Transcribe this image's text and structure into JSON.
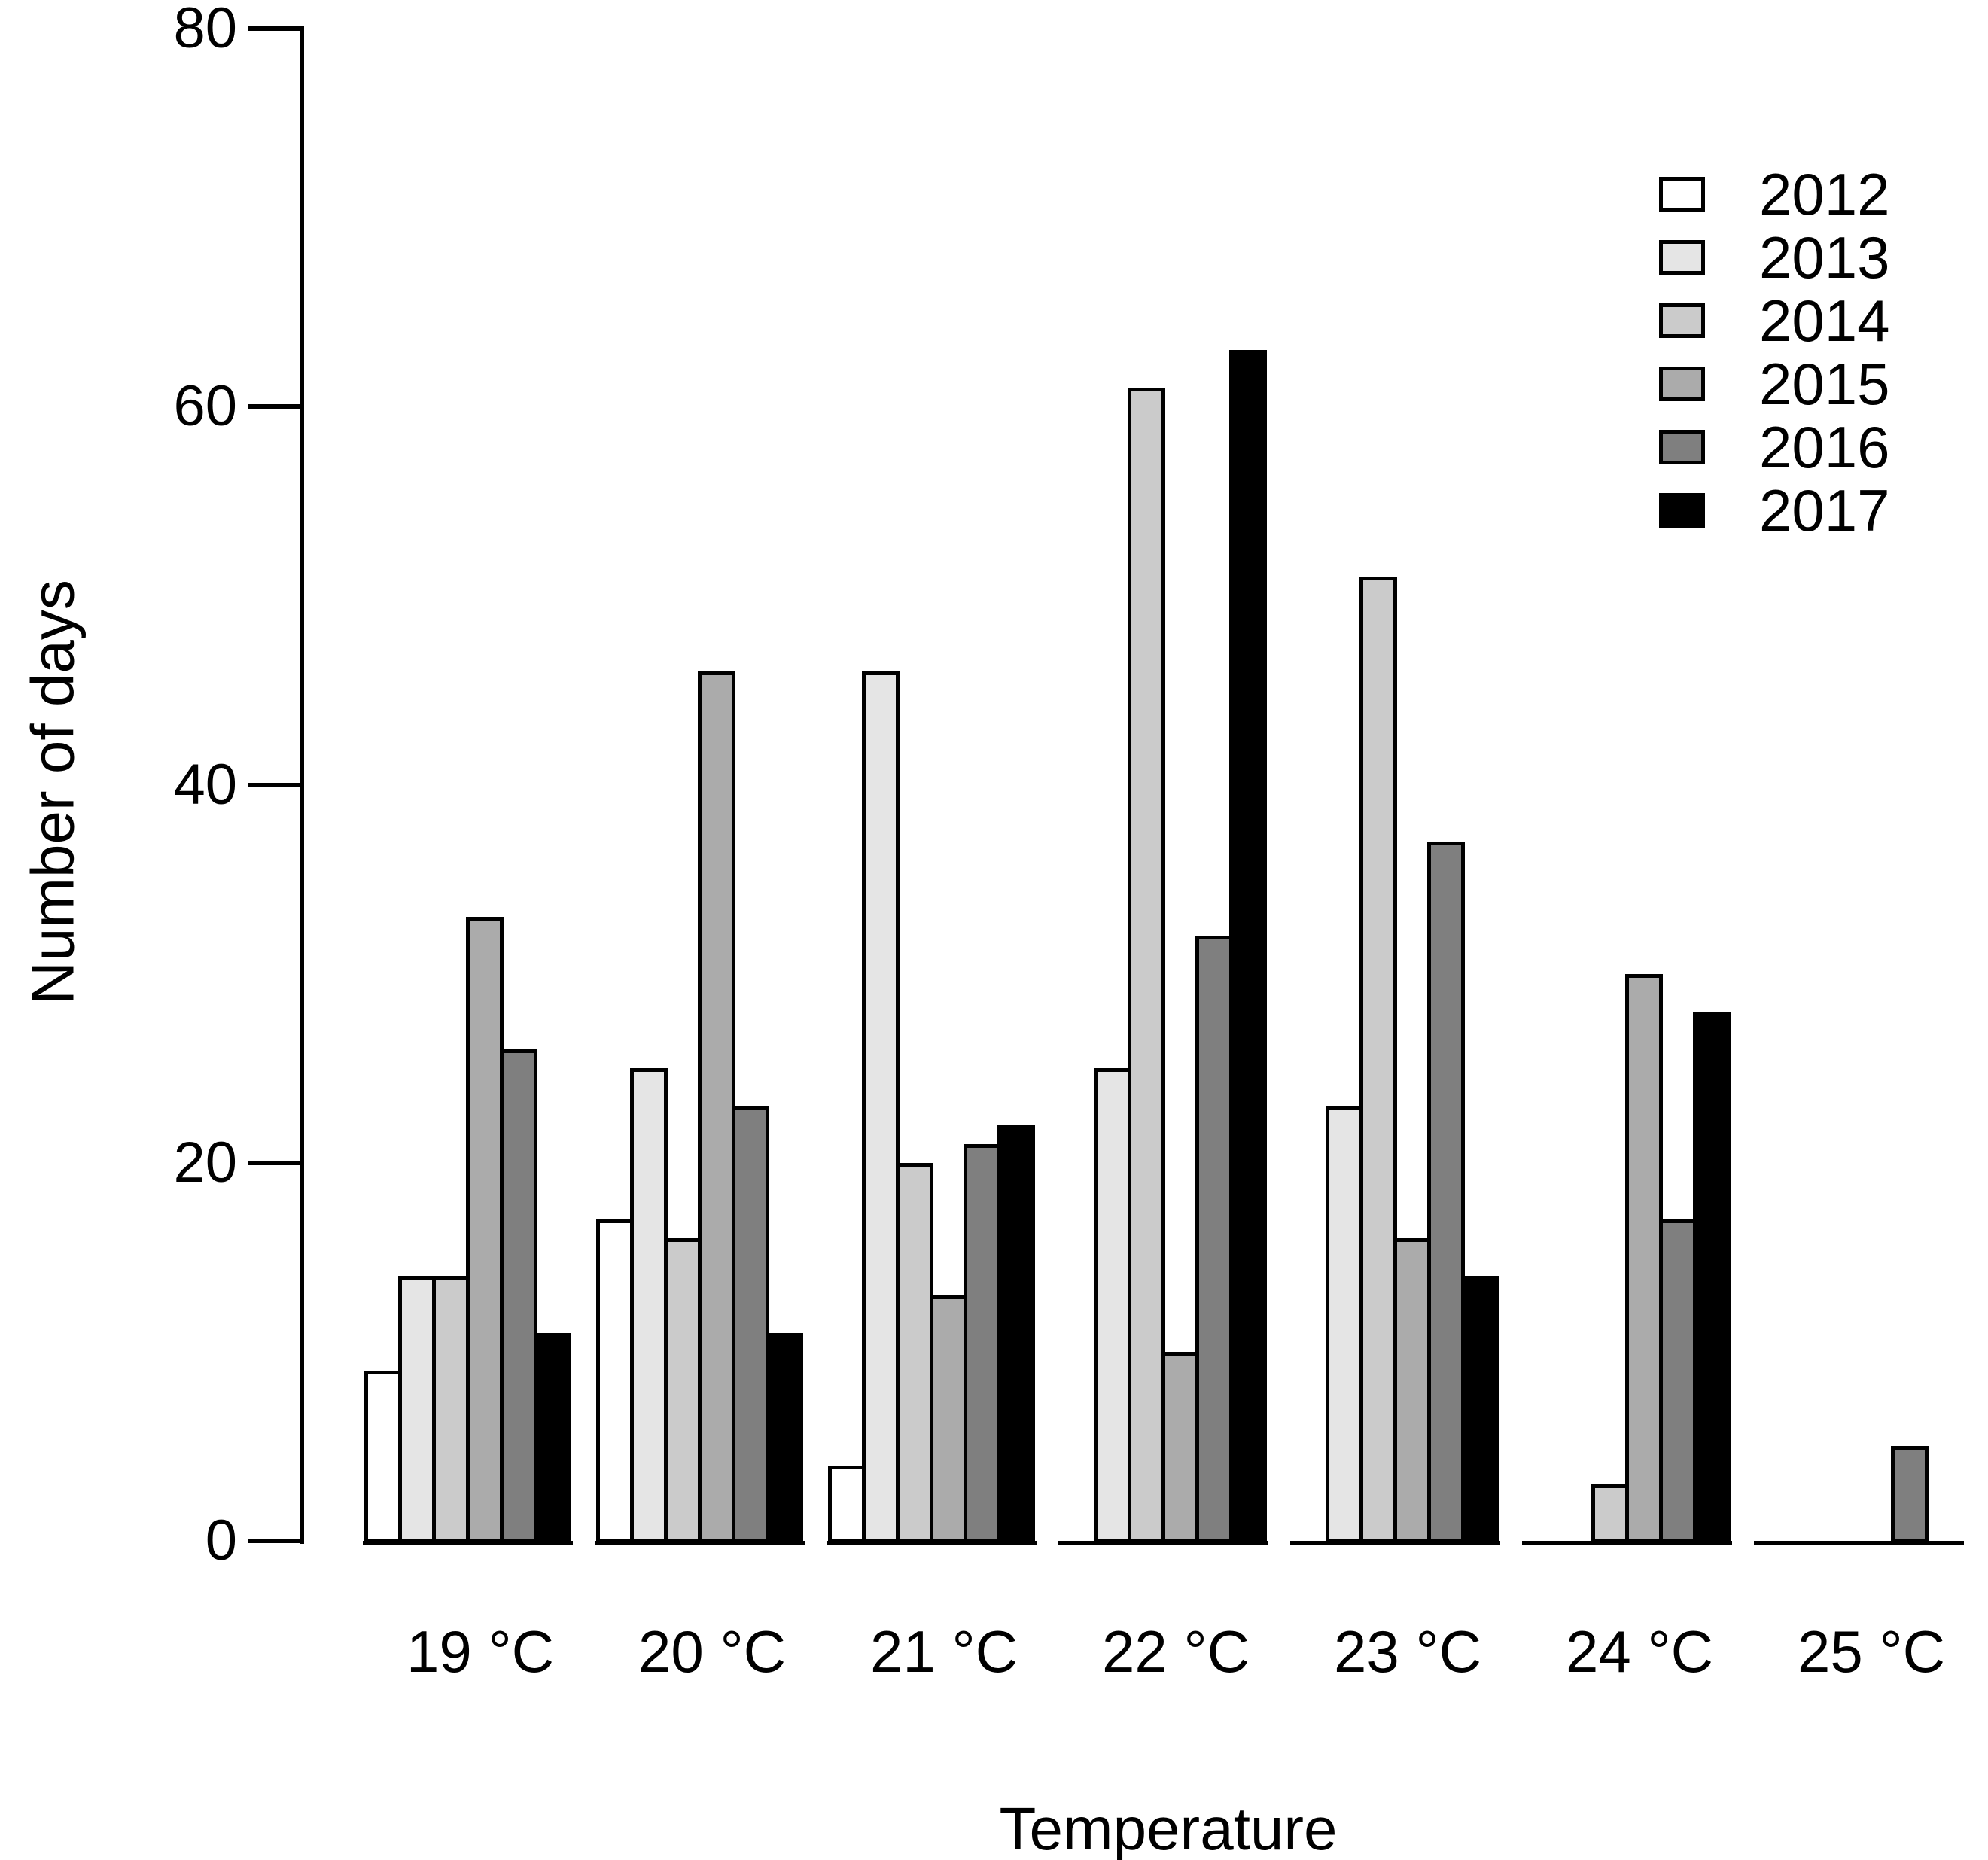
{
  "y_axis": {
    "label": "Number of days",
    "ticks": [
      0,
      20,
      40,
      60,
      80
    ],
    "max": 80
  },
  "x_axis": {
    "label": "Temperature"
  },
  "legend": {
    "entries": [
      {
        "label": "2012",
        "color": "#FFFFFF"
      },
      {
        "label": "2013",
        "color": "#E5E5E5"
      },
      {
        "label": "2014",
        "color": "#CBCBCB"
      },
      {
        "label": "2015",
        "color": "#ABABAB"
      },
      {
        "label": "2016",
        "color": "#7F7F7F"
      },
      {
        "label": "2017",
        "color": "#000000"
      }
    ]
  },
  "chart_data": {
    "type": "bar",
    "title": "",
    "xlabel": "Temperature",
    "ylabel": "Number of days",
    "ylim": [
      0,
      80
    ],
    "grid": false,
    "legend_position": "top-right",
    "categories": [
      "19 °C",
      "20 °C",
      "21 °C",
      "22 °C",
      "23 °C",
      "24 °C",
      "25 °C"
    ],
    "series": [
      {
        "name": "2012",
        "color": "#FFFFFF",
        "values": [
          9,
          17,
          4,
          0,
          0,
          0,
          0
        ]
      },
      {
        "name": "2013",
        "color": "#E5E5E5",
        "values": [
          14,
          25,
          46,
          25,
          23,
          0,
          0
        ]
      },
      {
        "name": "2014",
        "color": "#CBCBCB",
        "values": [
          14,
          16,
          20,
          61,
          51,
          3,
          0
        ]
      },
      {
        "name": "2015",
        "color": "#ABABAB",
        "values": [
          33,
          46,
          13,
          10,
          16,
          30,
          0
        ]
      },
      {
        "name": "2016",
        "color": "#7F7F7F",
        "values": [
          26,
          23,
          21,
          32,
          37,
          17,
          5
        ]
      },
      {
        "name": "2017",
        "color": "#000000",
        "values": [
          11,
          11,
          22,
          63,
          14,
          28,
          0
        ]
      }
    ]
  }
}
